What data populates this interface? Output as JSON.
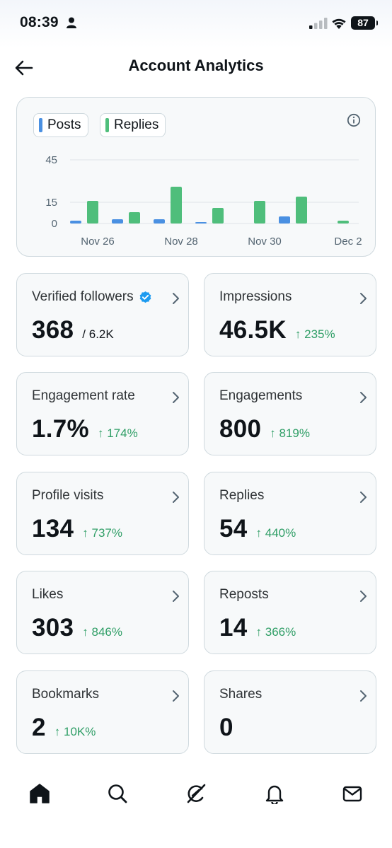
{
  "status_bar": {
    "time": "08:39",
    "battery": "87"
  },
  "header": {
    "title": "Account Analytics"
  },
  "chart": {
    "legend": [
      {
        "label": "Posts",
        "color": "#4a90e2"
      },
      {
        "label": "Replies",
        "color": "#4fbe7b"
      }
    ]
  },
  "chart_data": {
    "type": "bar",
    "categories": [
      "Nov 26",
      "Nov 27",
      "Nov 28",
      "Nov 29",
      "Nov 30",
      "Dec 1",
      "Dec 2"
    ],
    "x_tick_labels": [
      "Nov 26",
      "Nov 28",
      "Nov 30",
      "Dec 2"
    ],
    "series": [
      {
        "name": "Posts",
        "color": "#4a90e2",
        "values": [
          2,
          3,
          3,
          1,
          0,
          5,
          0
        ]
      },
      {
        "name": "Replies",
        "color": "#4fbe7b",
        "values": [
          16,
          8,
          26,
          11,
          16,
          19,
          2
        ]
      }
    ],
    "y_ticks": [
      0,
      15,
      45
    ],
    "ylim": [
      0,
      45
    ],
    "grid": true,
    "legend_position": "top-left"
  },
  "tiles": [
    {
      "label": "Verified followers",
      "value": "368",
      "sub": "/ 6.2K",
      "delta": ""
    },
    {
      "label": "Impressions",
      "value": "46.5K",
      "sub": "",
      "delta": "↑ 235%"
    },
    {
      "label": "Engagement rate",
      "value": "1.7%",
      "sub": "",
      "delta": "↑ 174%"
    },
    {
      "label": "Engagements",
      "value": "800",
      "sub": "",
      "delta": "↑ 819%"
    },
    {
      "label": "Profile visits",
      "value": "134",
      "sub": "",
      "delta": "↑ 737%"
    },
    {
      "label": "Replies",
      "value": "54",
      "sub": "",
      "delta": "↑ 440%"
    },
    {
      "label": "Likes",
      "value": "303",
      "sub": "",
      "delta": "↑ 846%"
    },
    {
      "label": "Reposts",
      "value": "14",
      "sub": "",
      "delta": "↑ 366%"
    },
    {
      "label": "Bookmarks",
      "value": "2",
      "sub": "",
      "delta": "↑ 10K%"
    },
    {
      "label": "Shares",
      "value": "0",
      "sub": "",
      "delta": ""
    }
  ],
  "nav": [
    {
      "icon": "home-icon"
    },
    {
      "icon": "search-icon"
    },
    {
      "icon": "grok-icon"
    },
    {
      "icon": "bell-icon"
    },
    {
      "icon": "mail-icon"
    }
  ]
}
